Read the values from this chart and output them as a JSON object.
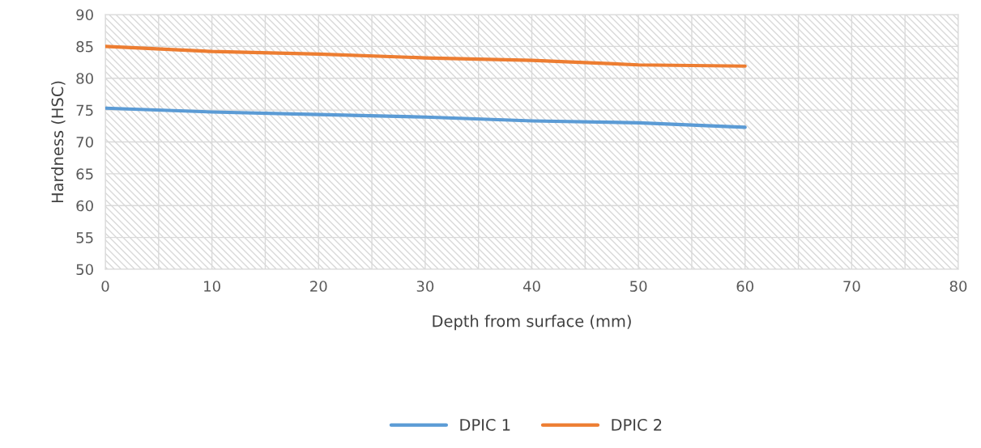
{
  "chart_data": {
    "type": "line",
    "xlabel": "Depth from surface (mm)",
    "ylabel": "Hardness (HSC)",
    "x": [
      0,
      10,
      20,
      30,
      40,
      50,
      60
    ],
    "series": [
      {
        "name": "DPIC 1",
        "color": "#5b9bd5",
        "values": [
          75.3,
          74.7,
          74.3,
          73.9,
          73.3,
          73.0,
          72.3
        ]
      },
      {
        "name": "DPIC 2",
        "color": "#ed7d31",
        "values": [
          85.0,
          84.2,
          83.8,
          83.2,
          82.8,
          82.1,
          81.9
        ]
      }
    ],
    "xlim": [
      0,
      80
    ],
    "xticks": [
      0,
      {
        "value": 5,
        "label": null
      },
      10,
      {
        "value": 15,
        "label": null
      },
      20,
      {
        "value": 25,
        "label": null
      },
      30,
      {
        "value": 35,
        "label": null
      },
      40,
      {
        "value": 45,
        "label": null
      },
      50,
      {
        "value": 55,
        "label": null
      },
      60,
      {
        "value": 65,
        "label": null
      },
      70,
      {
        "value": 75,
        "label": null
      },
      80
    ],
    "ylim": [
      50,
      90
    ],
    "yticks": [
      50,
      55,
      60,
      65,
      70,
      75,
      80,
      85,
      90
    ],
    "grid": true,
    "legend": "bottom",
    "marker": "none",
    "line_style": "solid"
  }
}
